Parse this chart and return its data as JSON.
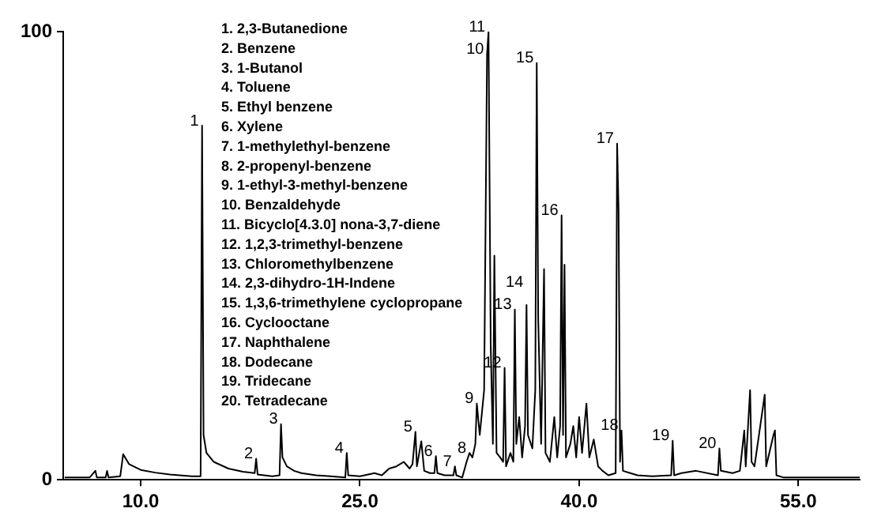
{
  "chart_data": {
    "type": "line",
    "x": [
      4.8,
      6.5,
      6.9,
      7.0,
      7.6,
      7.7,
      7.8,
      8.6,
      8.8,
      9.2,
      10,
      11,
      12,
      13.5,
      14.1,
      14.2,
      14.3,
      14.5,
      15,
      16,
      17,
      17.8,
      17.9,
      18.0,
      19.0,
      19.5,
      19.6,
      19.7,
      20.0,
      20.5,
      21,
      22,
      23,
      24.0,
      24.1,
      24.2,
      25,
      26,
      26.5,
      27,
      27.5,
      28,
      28.4,
      28.6,
      28.8,
      28.9,
      29.2,
      29.4,
      29.8,
      30.1,
      30.2,
      30.3,
      30.8,
      31.4,
      31.5,
      31.6,
      32.0,
      32.3,
      32.5,
      32.7,
      32.9,
      33.0,
      33.2,
      33.5,
      33.7,
      33.8,
      33.95,
      34.1,
      34.2,
      34.35,
      34.6,
      34.8,
      34.9,
      35.0,
      35.3,
      35.5,
      35.6,
      35.7,
      35.9,
      36.1,
      36.3,
      36.4,
      36.5,
      36.8,
      37.0,
      37.1,
      37.2,
      37.4,
      37.6,
      37.7,
      38.0,
      38.3,
      38.5,
      38.7,
      38.8,
      38.9,
      39.0,
      39.1,
      39.4,
      39.6,
      39.8,
      40.0,
      40.2,
      40.5,
      40.7,
      41.0,
      41.3,
      41.6,
      42.0,
      42.5,
      42.6,
      42.7,
      42.8,
      42.9,
      43.0,
      43.5,
      44,
      45,
      46.3,
      46.4,
      46.5,
      47,
      48,
      49.5,
      49.6,
      49.7,
      50.5,
      51,
      51.3,
      51.4,
      51.7,
      51.8,
      52,
      52.7,
      52.8,
      53.3,
      53.4,
      53.5,
      54,
      55,
      59.2
    ],
    "series": [
      {
        "color": "#000000",
        "values": [
          0.5,
          0.5,
          2,
          0.5,
          0.5,
          2,
          0.5,
          0.8,
          5.7,
          3.5,
          2.2,
          1.6,
          1.2,
          0.8,
          0.8,
          79,
          10,
          6,
          4,
          2.5,
          1.8,
          1.5,
          4.7,
          1.2,
          0.8,
          1,
          12.4,
          5,
          3,
          2,
          1.5,
          1,
          0.8,
          0.5,
          6,
          1,
          0.8,
          1.5,
          1,
          2.5,
          3,
          4,
          2.5,
          3.5,
          10.7,
          3,
          8.6,
          2,
          1.5,
          1.5,
          5.3,
          1.5,
          1,
          1,
          3,
          1,
          0.5,
          4,
          6,
          5,
          8,
          17,
          10,
          20,
          95,
          100,
          30,
          8,
          50,
          6,
          5,
          4,
          25,
          3,
          6,
          4,
          38,
          8,
          14,
          5,
          12,
          39,
          10,
          7,
          20,
          93,
          36,
          8,
          47,
          6,
          4,
          14,
          5,
          12,
          59,
          10,
          48,
          5,
          8,
          12,
          5,
          14,
          6,
          17,
          5,
          9,
          3,
          2,
          1,
          1.5,
          75,
          60,
          4,
          11,
          2,
          1.5,
          1,
          0.8,
          1,
          8.7,
          1,
          1.5,
          2,
          1,
          7,
          2,
          1.5,
          2,
          11,
          3,
          20,
          4,
          3,
          19,
          3,
          10,
          11,
          1,
          0.5,
          0.5,
          0.5
        ]
      }
    ],
    "xlim": [
      4.7,
      59.2
    ],
    "ylim": [
      0,
      100
    ],
    "xticks": [
      {
        "value": 10,
        "label": "10.0"
      },
      {
        "value": 25,
        "label": "25.0"
      },
      {
        "value": 40,
        "label": "40.0"
      },
      {
        "value": 55,
        "label": "55.0"
      }
    ],
    "yticks": [
      0,
      100
    ],
    "grid": false,
    "legend": false,
    "marker": "none",
    "line_style": "solid",
    "annotations": [
      "1. 2,3-Butanedione",
      "2. Benzene",
      "3. 1-Butanol",
      "4. Toluene",
      "5. Ethyl benzene",
      "6. Xylene",
      "7. 1-methylethyl-benzene",
      "8. 2-propenyl-benzene",
      "9. 1-ethyl-3-methyl-benzene",
      "10. Benzaldehyde",
      "11. Bicyclo[4.3.0] nona-3,7-diene",
      "12. 1,2,3-trimethyl-benzene",
      "13. Chloromethylbenzene",
      "14. 2,3-dihydro-1H-Indene",
      "15. 1,3,6-trimethylene cyclopropane",
      "16. Cyclooctane",
      "17. Naphthalene",
      "18. Dodecane",
      "19. Tridecane",
      "20. Tetradecane",
      {
        "text": "1",
        "x": 14.2,
        "y": 79
      },
      {
        "text": "2",
        "x": 17.9,
        "y": 4.7
      },
      {
        "text": "3",
        "x": 19.6,
        "y": 12.4
      },
      {
        "text": "4",
        "x": 24.1,
        "y": 6
      },
      {
        "text": "5",
        "x": 28.8,
        "y": 10.7
      },
      {
        "text": "6",
        "x": 30.2,
        "y": 5.3
      },
      {
        "text": "7",
        "x": 31.5,
        "y": 3
      },
      {
        "text": "8",
        "x": 32.5,
        "y": 6
      },
      {
        "text": "9",
        "x": 33.0,
        "y": 17
      },
      {
        "text": "10",
        "x": 33.7,
        "y": 95
      },
      {
        "text": "11",
        "x": 33.8,
        "y": 100
      },
      {
        "text": "12",
        "x": 34.9,
        "y": 25
      },
      {
        "text": "13",
        "x": 35.6,
        "y": 38
      },
      {
        "text": "14",
        "x": 36.4,
        "y": 39
      },
      {
        "text": "15",
        "x": 37.1,
        "y": 93
      },
      {
        "text": "16",
        "x": 38.8,
        "y": 59
      },
      {
        "text": "17",
        "x": 42.6,
        "y": 75
      },
      {
        "text": "18",
        "x": 42.9,
        "y": 11
      },
      {
        "text": "19",
        "x": 46.4,
        "y": 8.7
      },
      {
        "text": "20",
        "x": 49.6,
        "y": 7
      }
    ]
  }
}
